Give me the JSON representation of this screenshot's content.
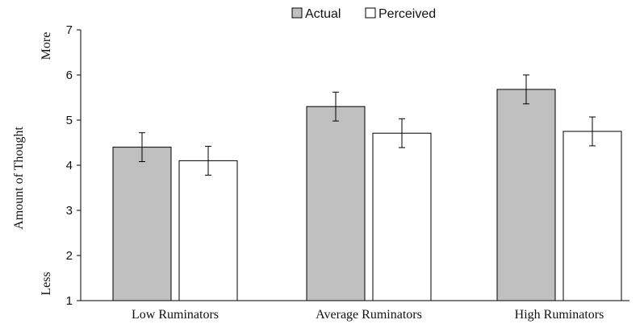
{
  "chart_data": {
    "type": "bar",
    "title": "",
    "xlabel": "",
    "ylabel": "Amount of Thought",
    "ylim": [
      1,
      7
    ],
    "yticks": [
      1,
      2,
      3,
      4,
      5,
      6,
      7
    ],
    "annotations": {
      "top": "More",
      "bottom": "Less"
    },
    "categories": [
      "Low Ruminators",
      "Average Ruminators",
      "High Ruminators"
    ],
    "series": [
      {
        "name": "Actual",
        "color": "#c0c0c0",
        "values": [
          4.4,
          5.3,
          5.68
        ],
        "errors": [
          0.32,
          0.32,
          0.32
        ]
      },
      {
        "name": "Perceived",
        "color": "#ffffff",
        "values": [
          4.1,
          4.71,
          4.75
        ],
        "errors": [
          0.32,
          0.32,
          0.32
        ]
      }
    ],
    "legend": "top-center",
    "grid": false
  }
}
